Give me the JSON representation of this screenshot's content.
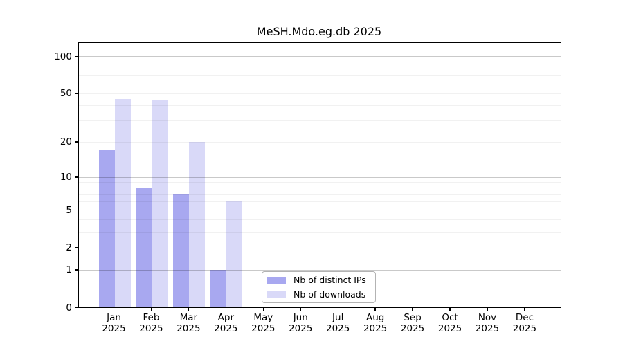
{
  "title": "MeSH.Mdo.eg.db 2025",
  "chart_data": {
    "type": "bar",
    "title": "MeSH.Mdo.eg.db 2025",
    "categories": [
      "Jan",
      "Feb",
      "Mar",
      "Apr",
      "May",
      "Jun",
      "Jul",
      "Aug",
      "Sep",
      "Oct",
      "Nov",
      "Dec"
    ],
    "category_year": "2025",
    "series": [
      {
        "name": "Nb of distinct IPs",
        "color": "#a8a8f0",
        "values": [
          17,
          8,
          7,
          1,
          0,
          0,
          0,
          0,
          0,
          0,
          0,
          0
        ]
      },
      {
        "name": "Nb of downloads",
        "color": "#d9d9f8",
        "values": [
          45,
          44,
          20,
          6,
          0,
          0,
          0,
          0,
          0,
          0,
          0,
          0
        ]
      }
    ],
    "xlabel": "",
    "ylabel": "",
    "y_scale": "log10(1+v)",
    "ylim": [
      0,
      128
    ],
    "y_ticks": [
      0,
      1,
      2,
      5,
      10,
      20,
      50,
      100
    ],
    "y_tick_labels": [
      "0",
      "1",
      "2",
      "5",
      "10",
      "20",
      "50",
      "100"
    ],
    "major_gridlines": [
      1,
      10,
      100
    ],
    "minor_gridlines": [
      2,
      3,
      4,
      5,
      6,
      7,
      8,
      9,
      20,
      30,
      40,
      50,
      60,
      70,
      80,
      90
    ],
    "grid": "on",
    "legend_position": "inside-bottom-center"
  }
}
